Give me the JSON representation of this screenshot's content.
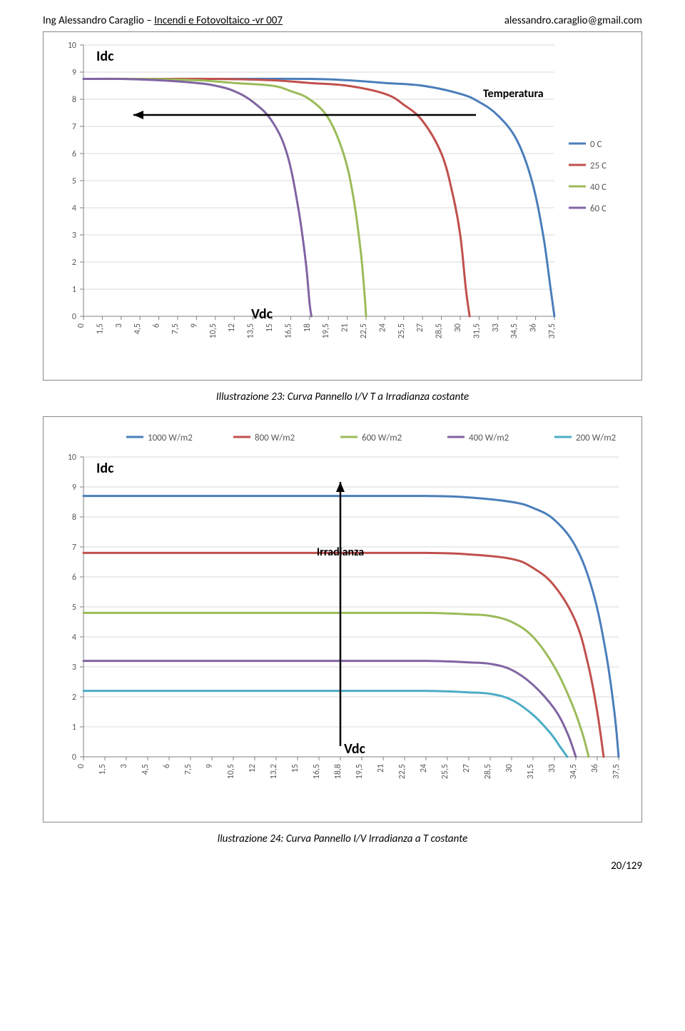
{
  "header": {
    "author": "Ing Alessandro Caraglio – ",
    "title_underline": "Incendi e Fotovoltaico -vr 007",
    "email": "alessandro.caraglio@gmail.com"
  },
  "footer": {
    "page": "20/129"
  },
  "caption1": "Illustrazione 23: Curva Pannello I/V  T  a Irradianza costante",
  "caption2": "llustrazione 24: Curva Pannello I/V Irradianza a T costante",
  "chart1": {
    "type": "line",
    "y_axis_title": "Idc",
    "x_axis_title": "Vdc",
    "annotation": "Temperatura",
    "ylim": [
      0,
      10
    ],
    "yticks": [
      0,
      1,
      2,
      3,
      4,
      5,
      6,
      7,
      8,
      9,
      10
    ],
    "xticks": [
      "0",
      "1,5",
      "3",
      "4,5",
      "6",
      "7,5",
      "9",
      "10,5",
      "12",
      "13,5",
      "15",
      "16,5",
      "18",
      "19,5",
      "21",
      "22,5",
      "24",
      "25,5",
      "27",
      "28,5",
      "30",
      "31,5",
      "33",
      "34,5",
      "36",
      "37,5"
    ],
    "xlim_idx": [
      0,
      25
    ],
    "grid_color": "#d9d9d9",
    "axis_color": "#808080",
    "background": "#ffffff",
    "tick_fontsize": 12,
    "axis_title_fontsize": 20,
    "annotation_fontsize": 16,
    "line_width": 3,
    "legend": [
      {
        "label": "0 C",
        "color": "#4a7ebb"
      },
      {
        "label": "25 C",
        "color": "#c0504d"
      },
      {
        "label": "40 C",
        "color": "#9bbb59"
      },
      {
        "label": "60 C",
        "color": "#8064a2"
      }
    ],
    "series": [
      {
        "color": "#4a7ebb",
        "points": [
          [
            0,
            8.75
          ],
          [
            4,
            8.75
          ],
          [
            8,
            8.75
          ],
          [
            12,
            8.75
          ],
          [
            14,
            8.7
          ],
          [
            16,
            8.6
          ],
          [
            18,
            8.5
          ],
          [
            20,
            8.2
          ],
          [
            21,
            7.9
          ],
          [
            22,
            7.4
          ],
          [
            23,
            6.5
          ],
          [
            23.8,
            5.0
          ],
          [
            24.4,
            3.0
          ],
          [
            24.8,
            1.0
          ],
          [
            25,
            0
          ]
        ]
      },
      {
        "color": "#c0504d",
        "points": [
          [
            0,
            8.75
          ],
          [
            4,
            8.75
          ],
          [
            7,
            8.75
          ],
          [
            10,
            8.7
          ],
          [
            12,
            8.6
          ],
          [
            14,
            8.5
          ],
          [
            16,
            8.2
          ],
          [
            17,
            7.8
          ],
          [
            18,
            7.2
          ],
          [
            19,
            6.0
          ],
          [
            19.6,
            4.5
          ],
          [
            20,
            3.0
          ],
          [
            20.3,
            1.0
          ],
          [
            20.5,
            0
          ]
        ]
      },
      {
        "color": "#9bbb59",
        "points": [
          [
            0,
            8.75
          ],
          [
            3,
            8.75
          ],
          [
            6,
            8.7
          ],
          [
            8,
            8.6
          ],
          [
            10,
            8.5
          ],
          [
            11,
            8.3
          ],
          [
            12,
            8.0
          ],
          [
            13,
            7.3
          ],
          [
            13.8,
            6.0
          ],
          [
            14.3,
            4.5
          ],
          [
            14.7,
            2.5
          ],
          [
            14.9,
            1.0
          ],
          [
            15,
            0
          ]
        ]
      },
      {
        "color": "#8064a2",
        "points": [
          [
            0,
            8.75
          ],
          [
            2,
            8.75
          ],
          [
            4,
            8.7
          ],
          [
            6,
            8.6
          ],
          [
            7,
            8.5
          ],
          [
            8,
            8.3
          ],
          [
            9,
            7.9
          ],
          [
            10,
            7.2
          ],
          [
            10.8,
            6.0
          ],
          [
            11.4,
            4.0
          ],
          [
            11.8,
            2.0
          ],
          [
            12,
            0.5
          ],
          [
            12.1,
            0
          ]
        ]
      }
    ]
  },
  "chart2": {
    "type": "line",
    "y_axis_title": "Idc",
    "x_axis_title": "Vdc",
    "annotation": "Irradianza",
    "ylim": [
      0,
      10
    ],
    "yticks": [
      0,
      1,
      2,
      3,
      4,
      5,
      6,
      7,
      8,
      9,
      10
    ],
    "xticks": [
      "0",
      "1,5",
      "3",
      "4,5",
      "6",
      "7,5",
      "9",
      "10,5",
      "12",
      "13,2",
      "15",
      "16,5",
      "18,8",
      "19,5",
      "21",
      "22,5",
      "24",
      "25,5",
      "27",
      "28,5",
      "30",
      "31,5",
      "33",
      "34,5",
      "36",
      "37,5"
    ],
    "xlim_idx": [
      0,
      25
    ],
    "grid_color": "#d9d9d9",
    "axis_color": "#808080",
    "background": "#ffffff",
    "tick_fontsize": 12,
    "axis_title_fontsize": 20,
    "annotation_fontsize": 16,
    "line_width": 3,
    "legend": [
      {
        "label": "1000 W/m2",
        "color": "#4a7ebb"
      },
      {
        "label": "800 W/m2",
        "color": "#c0504d"
      },
      {
        "label": "600 W/m2",
        "color": "#9bbb59"
      },
      {
        "label": "400 W/m2",
        "color": "#8064a2"
      },
      {
        "label": "200 W/m2",
        "color": "#4bacc6"
      }
    ],
    "series": [
      {
        "color": "#4a7ebb",
        "points": [
          [
            0,
            8.7
          ],
          [
            6,
            8.7
          ],
          [
            12,
            8.7
          ],
          [
            16,
            8.7
          ],
          [
            18,
            8.65
          ],
          [
            20,
            8.5
          ],
          [
            21,
            8.3
          ],
          [
            22,
            7.9
          ],
          [
            23,
            7.0
          ],
          [
            23.8,
            5.5
          ],
          [
            24.4,
            3.5
          ],
          [
            24.8,
            1.5
          ],
          [
            25,
            0
          ]
        ]
      },
      {
        "color": "#c0504d",
        "points": [
          [
            0,
            6.8
          ],
          [
            6,
            6.8
          ],
          [
            12,
            6.8
          ],
          [
            16,
            6.8
          ],
          [
            18,
            6.75
          ],
          [
            20,
            6.6
          ],
          [
            21,
            6.3
          ],
          [
            22,
            5.7
          ],
          [
            23,
            4.5
          ],
          [
            23.6,
            3.0
          ],
          [
            24,
            1.5
          ],
          [
            24.3,
            0
          ]
        ]
      },
      {
        "color": "#9bbb59",
        "points": [
          [
            0,
            4.8
          ],
          [
            6,
            4.8
          ],
          [
            12,
            4.8
          ],
          [
            16,
            4.8
          ],
          [
            18,
            4.75
          ],
          [
            19,
            4.7
          ],
          [
            20,
            4.5
          ],
          [
            21,
            4.0
          ],
          [
            22,
            3.0
          ],
          [
            22.8,
            1.8
          ],
          [
            23.3,
            0.8
          ],
          [
            23.6,
            0
          ]
        ]
      },
      {
        "color": "#8064a2",
        "points": [
          [
            0,
            3.2
          ],
          [
            6,
            3.2
          ],
          [
            12,
            3.2
          ],
          [
            16,
            3.2
          ],
          [
            18,
            3.15
          ],
          [
            19,
            3.1
          ],
          [
            20,
            2.9
          ],
          [
            21,
            2.4
          ],
          [
            22,
            1.6
          ],
          [
            22.6,
            0.8
          ],
          [
            23,
            0
          ]
        ]
      },
      {
        "color": "#4bacc6",
        "points": [
          [
            0,
            2.2
          ],
          [
            6,
            2.2
          ],
          [
            12,
            2.2
          ],
          [
            16,
            2.2
          ],
          [
            18,
            2.15
          ],
          [
            19,
            2.1
          ],
          [
            20,
            1.9
          ],
          [
            21,
            1.4
          ],
          [
            21.8,
            0.8
          ],
          [
            22.3,
            0.3
          ],
          [
            22.6,
            0
          ]
        ]
      }
    ]
  }
}
